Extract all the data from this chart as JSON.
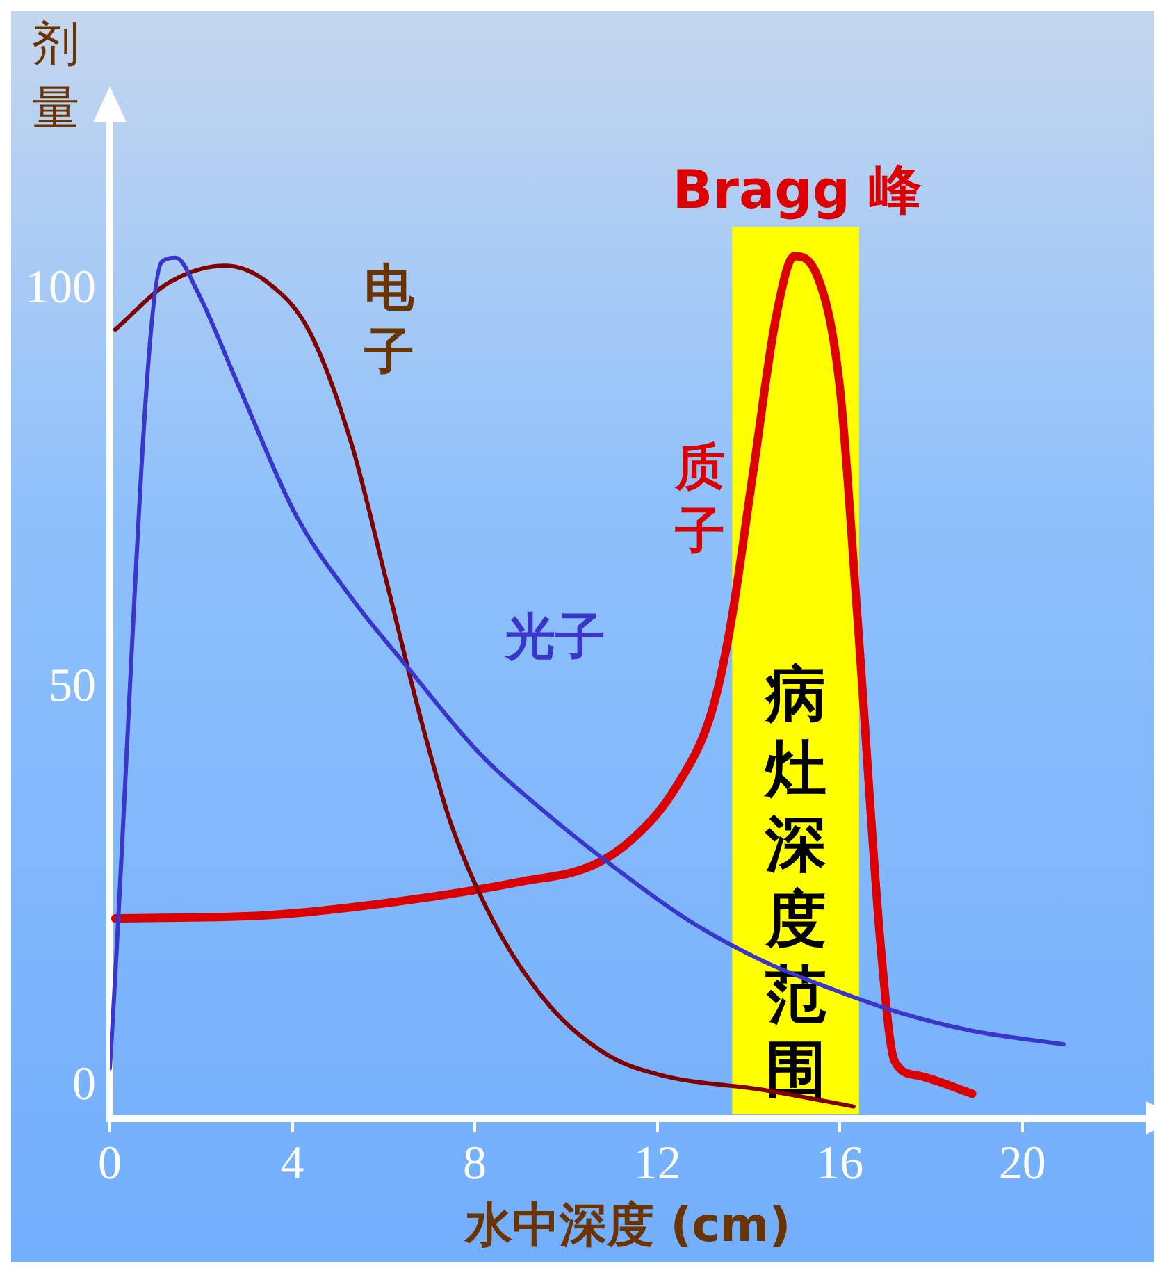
{
  "chart_data": {
    "type": "line",
    "xlabel": "水中深度 (cm)",
    "ylabel": "剂量",
    "xlim": [
      0,
      22.7
    ],
    "xticks": [
      0,
      4,
      8,
      12,
      16,
      20
    ],
    "ylim": [
      -4,
      121
    ],
    "yticks": [
      0,
      50,
      100
    ],
    "grid": false,
    "legend": false,
    "marker": "none",
    "line_style": "solid",
    "series": [
      {
        "name": "光子",
        "color": "#3a36cc",
        "x": [
          0,
          1.14,
          1.45,
          1.9,
          2.84,
          4.07,
          5.3,
          6.54,
          8.09,
          9.63,
          11.2,
          12.7,
          14.3,
          15.8,
          17.3,
          18.9,
          20.9
        ],
        "values": [
          2.3,
          103.5,
          104,
          100,
          87.7,
          71.8,
          61.3,
          52.5,
          41.9,
          34,
          26.9,
          20.8,
          15.8,
          12.3,
          9.3,
          7,
          5.3
        ]
      },
      {
        "name": "电子",
        "color": "#800000",
        "x": [
          0.12,
          1.3,
          2.53,
          3.46,
          4.38,
          5.3,
          6.08,
          6.85,
          7.47,
          8.4,
          9.63,
          10.9,
          12.1,
          14.3,
          16.3
        ],
        "values": [
          95,
          100.9,
          103,
          100.9,
          94.7,
          80.6,
          63,
          45.4,
          33.1,
          20.8,
          10.2,
          4,
          1.4,
          -0.4,
          -2.5
        ]
      },
      {
        "name": "质子",
        "color": "#dd0000",
        "x": [
          0.12,
          3.46,
          6.54,
          9,
          10.6,
          11.5,
          12.4,
          13.2,
          13.6,
          14.1,
          14.6,
          15,
          15.5,
          16,
          16.4,
          16.9,
          17.2,
          17.7,
          18.9
        ],
        "values": [
          21.1,
          21.5,
          23.4,
          25.7,
          27.8,
          31.3,
          37.5,
          47.2,
          57.7,
          77.1,
          96.5,
          104.2,
          101.8,
          87.7,
          57.7,
          17.3,
          3.2,
          1.4,
          -0.9
        ]
      }
    ],
    "bands": [
      {
        "axis": "x",
        "from": 13.64,
        "to": 16.42,
        "label": "病灶深度范围",
        "color": "#ffff00"
      }
    ],
    "annotations": [
      {
        "text": "Bragg 峰",
        "x": 15,
        "y": 104
      }
    ]
  }
}
